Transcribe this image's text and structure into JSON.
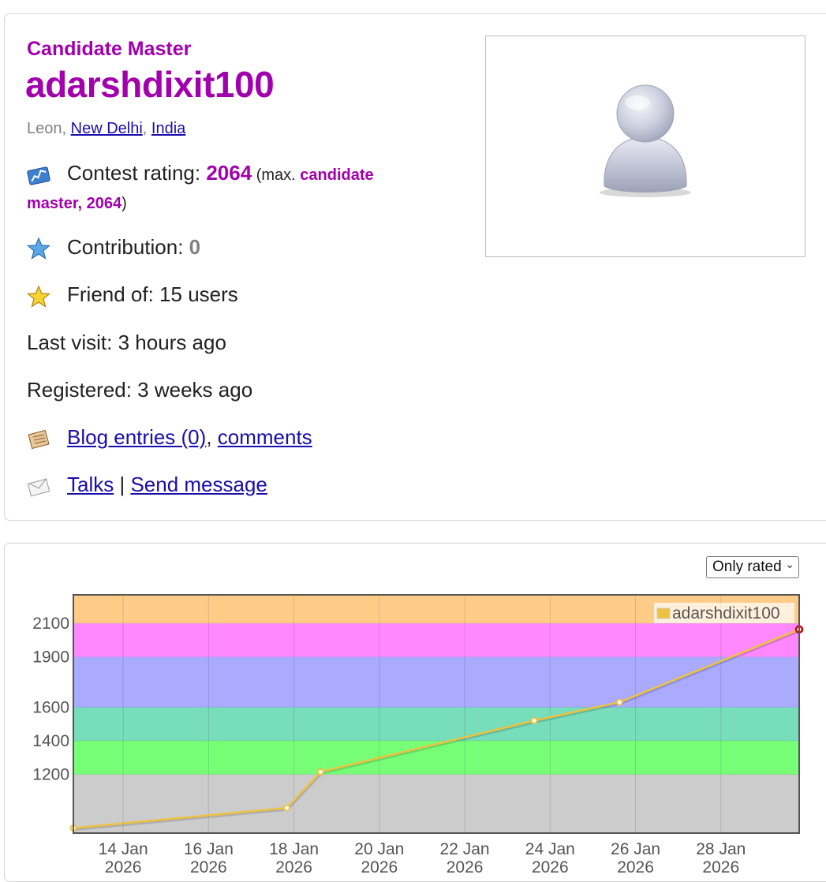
{
  "profile": {
    "rank": "Candidate Master",
    "handle": "adarshdixit100",
    "location": {
      "city": "Leon",
      "sep1": ", ",
      "region": "New Delhi",
      "sep2": ", ",
      "country": "India"
    },
    "rating": {
      "label": "Contest rating: ",
      "value": "2064",
      "max_prefix": " (max. ",
      "max_rank": "candidate",
      "max_line2": "master, 2064",
      "max_suffix": ")"
    },
    "contribution": {
      "label": "Contribution: ",
      "value": "0"
    },
    "friends": "Friend of: 15 users",
    "last_visit": "Last visit: 3 hours ago",
    "registered": "Registered: 3 weeks ago",
    "blog": {
      "entries": "Blog entries (0)",
      "sep": ", ",
      "comments": "comments"
    },
    "talks": {
      "talks": "Talks",
      "sep": " | ",
      "send": "Send message"
    },
    "icons": {
      "rating": "rating-graph-icon",
      "contribution": "blue-star-icon",
      "friends": "gold-star-icon",
      "blog": "notebook-icon",
      "talks": "envelope-icon",
      "avatar": "default-user-avatar"
    }
  },
  "graph": {
    "filter": {
      "selected": "Only rated"
    }
  },
  "chart_data": {
    "type": "line",
    "series": [
      {
        "name": "adarshdixit100",
        "color": "#edc240",
        "points": [
          {
            "x": "2026-01-12 20:00",
            "y": 880
          },
          {
            "x": "2026-01-17 20:00",
            "y": 1000
          },
          {
            "x": "2026-01-18 15:00",
            "y": 1215
          },
          {
            "x": "2026-01-23 15:00",
            "y": 1520
          },
          {
            "x": "2026-01-25 15:00",
            "y": 1630
          },
          {
            "x": "2026-01-29 20:00",
            "y": 2064
          }
        ]
      }
    ],
    "yticks": [
      1200,
      1400,
      1600,
      1900,
      2100
    ],
    "xticks": [
      {
        "date": "2026-01-14",
        "label1": "14 Jan",
        "label2": "2026"
      },
      {
        "date": "2026-01-16",
        "label1": "16 Jan",
        "label2": "2026"
      },
      {
        "date": "2026-01-18",
        "label1": "18 Jan",
        "label2": "2026"
      },
      {
        "date": "2026-01-20",
        "label1": "20 Jan",
        "label2": "2026"
      },
      {
        "date": "2026-01-22",
        "label1": "22 Jan",
        "label2": "2026"
      },
      {
        "date": "2026-01-24",
        "label1": "24 Jan",
        "label2": "2026"
      },
      {
        "date": "2026-01-26",
        "label1": "26 Jan",
        "label2": "2026"
      },
      {
        "date": "2026-01-28",
        "label1": "28 Jan",
        "label2": "2026"
      }
    ],
    "xlim": [
      "2026-01-12 20:00",
      "2026-01-29 20:00"
    ],
    "ylim": [
      850,
      2270
    ],
    "bands": [
      {
        "from": 0,
        "to": 1200,
        "color": "#cccccc"
      },
      {
        "from": 1200,
        "to": 1400,
        "color": "#77ff77"
      },
      {
        "from": 1400,
        "to": 1600,
        "color": "#77ddbb"
      },
      {
        "from": 1600,
        "to": 1900,
        "color": "#aaaaff"
      },
      {
        "from": 1900,
        "to": 2100,
        "color": "#ff88ff"
      },
      {
        "from": 2100,
        "to": 2300,
        "color": "#ffcc88"
      }
    ],
    "legend": "top-right",
    "grid": true,
    "last_point_color": "#cc0000"
  }
}
